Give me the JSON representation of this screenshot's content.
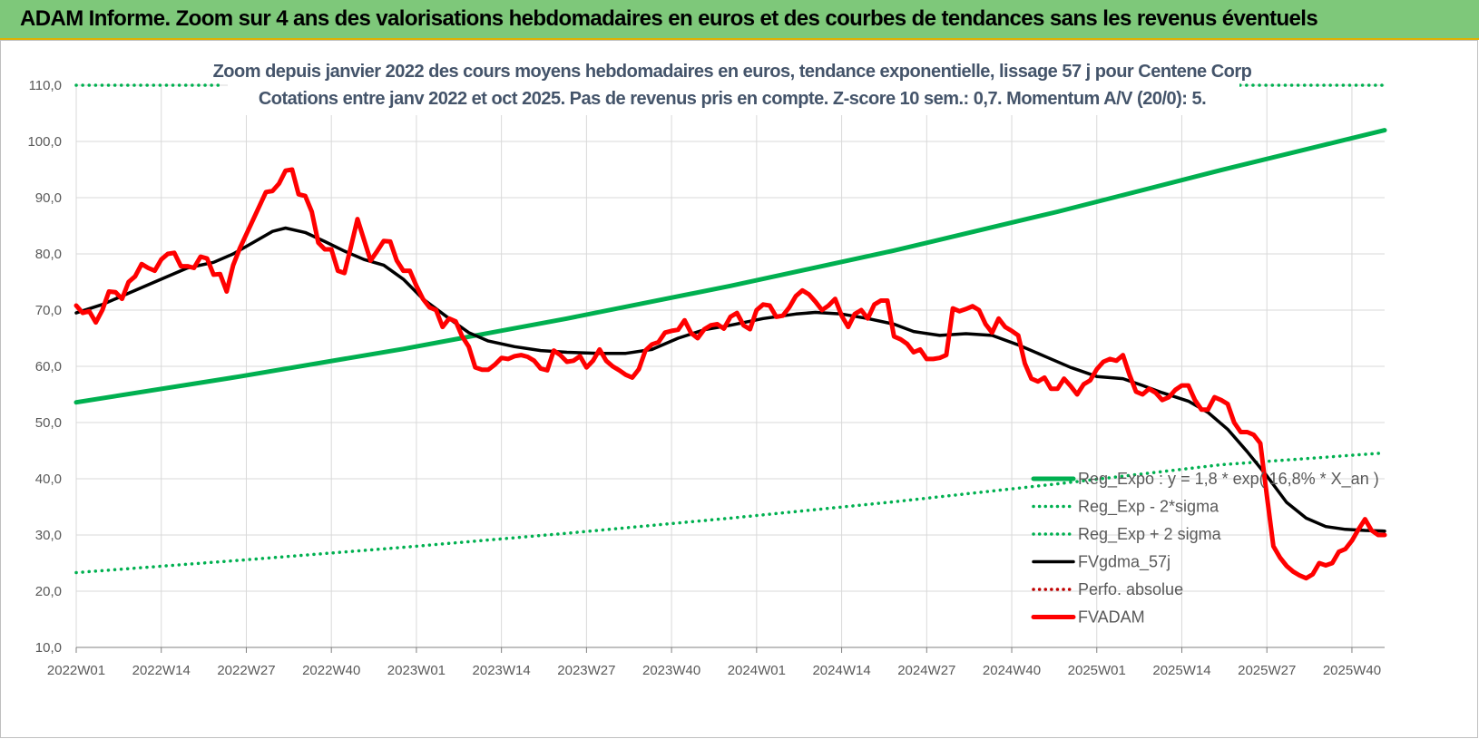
{
  "header": {
    "title": "ADAM Informe. Zoom sur 4 ans des valorisations hebdomadaires en euros et des courbes de tendances sans les revenus éventuels"
  },
  "colors": {
    "banner": "#7ec87a",
    "trend_green": "#00b050",
    "sigma_green": "#00b050",
    "mean_black": "#000000",
    "price_red": "#ff0000",
    "grid": "#d9d9d9",
    "title_text": "#44546a"
  },
  "chart_data": {
    "type": "line",
    "title": "Zoom depuis janvier 2022 des cours moyens hebdomadaires en euros, tendance exponentielle, lissage 57 j pour Centene Corp",
    "subtitle": "Cotations entre janv 2022 et oct 2025. Pas de revenus pris en compte. Z-score 10 sem.: 0,7. Momentum A/V (20/0): 5.",
    "xlabel": "",
    "ylabel": "",
    "ylim": [
      10,
      110
    ],
    "yticks": [
      "10,0",
      "20,0",
      "30,0",
      "40,0",
      "50,0",
      "60,0",
      "70,0",
      "80,0",
      "90,0",
      "100,0",
      "110,0"
    ],
    "grid": true,
    "legend_position": "bottom-right",
    "x_ticks": [
      {
        "week": 0,
        "label": "2022W01"
      },
      {
        "week": 13,
        "label": "2022W14"
      },
      {
        "week": 26,
        "label": "2022W27"
      },
      {
        "week": 39,
        "label": "2022W40"
      },
      {
        "week": 52,
        "label": "2023W01"
      },
      {
        "week": 65,
        "label": "2023W14"
      },
      {
        "week": 78,
        "label": "2023W27"
      },
      {
        "week": 91,
        "label": "2023W40"
      },
      {
        "week": 104,
        "label": "2024W01"
      },
      {
        "week": 117,
        "label": "2024W14"
      },
      {
        "week": 130,
        "label": "2024W27"
      },
      {
        "week": 143,
        "label": "2024W40"
      },
      {
        "week": 156,
        "label": "2025W01"
      },
      {
        "week": 169,
        "label": "2025W14"
      },
      {
        "week": 182,
        "label": "2025W27"
      },
      {
        "week": 195,
        "label": "2025W40"
      }
    ],
    "x_max_week": 200,
    "series": [
      {
        "name": "Reg_Expo : y = 1,8 * exp( 16,8% * X_an )",
        "style": "solid-thick",
        "color": "#00b050",
        "points": [
          [
            0,
            53.6
          ],
          [
            25,
            58.2
          ],
          [
            50,
            63.1
          ],
          [
            75,
            68.5
          ],
          [
            100,
            74.3
          ],
          [
            125,
            80.6
          ],
          [
            150,
            87.5
          ],
          [
            175,
            94.9
          ],
          [
            200,
            102.0
          ]
        ]
      },
      {
        "name": "Reg_Exp - 2*sigma",
        "style": "dotted",
        "color": "#00b050",
        "points": [
          [
            0,
            23.3
          ],
          [
            25,
            25.5
          ],
          [
            50,
            27.8
          ],
          [
            75,
            30.3
          ],
          [
            100,
            33.0
          ],
          [
            125,
            35.9
          ],
          [
            150,
            39.1
          ],
          [
            175,
            42.5
          ],
          [
            200,
            44.6
          ]
        ]
      },
      {
        "name": "Reg_Exp + 2 sigma",
        "style": "dotted",
        "color": "#00b050",
        "segments": [
          [
            [
              0,
              110
            ],
            [
              22,
              110
            ]
          ],
          [
            [
              172,
              110
            ],
            [
              200,
              110
            ]
          ]
        ]
      },
      {
        "name": "FVgdma_57j",
        "style": "solid",
        "color": "#000000",
        "points": [
          [
            0,
            69.5
          ],
          [
            4,
            71.0
          ],
          [
            8,
            73.0
          ],
          [
            13,
            75.5
          ],
          [
            17,
            77.5
          ],
          [
            21,
            78.5
          ],
          [
            24,
            80.0
          ],
          [
            27,
            82.0
          ],
          [
            30,
            84.0
          ],
          [
            32,
            84.6
          ],
          [
            35,
            83.8
          ],
          [
            38,
            82.2
          ],
          [
            41,
            80.5
          ],
          [
            44,
            79.0
          ],
          [
            47,
            78.0
          ],
          [
            50,
            75.5
          ],
          [
            53,
            72.0
          ],
          [
            57,
            68.5
          ],
          [
            60,
            66.0
          ],
          [
            63,
            64.5
          ],
          [
            67,
            63.5
          ],
          [
            71,
            62.8
          ],
          [
            75,
            62.5
          ],
          [
            80,
            62.3
          ],
          [
            84,
            62.3
          ],
          [
            88,
            63.0
          ],
          [
            92,
            65.0
          ],
          [
            96,
            66.5
          ],
          [
            100,
            67.3
          ],
          [
            105,
            68.5
          ],
          [
            110,
            69.3
          ],
          [
            113,
            69.6
          ],
          [
            117,
            69.3
          ],
          [
            121,
            68.5
          ],
          [
            125,
            67.5
          ],
          [
            128,
            66.2
          ],
          [
            132,
            65.5
          ],
          [
            136,
            65.8
          ],
          [
            140,
            65.5
          ],
          [
            144,
            63.8
          ],
          [
            148,
            61.8
          ],
          [
            152,
            59.8
          ],
          [
            156,
            58.2
          ],
          [
            160,
            57.8
          ],
          [
            163,
            56.6
          ],
          [
            166,
            55.3
          ],
          [
            170,
            53.8
          ],
          [
            173,
            51.8
          ],
          [
            176,
            48.8
          ],
          [
            179,
            44.8
          ],
          [
            182,
            40.5
          ],
          [
            185,
            35.8
          ],
          [
            188,
            33.0
          ],
          [
            191,
            31.5
          ],
          [
            194,
            31.0
          ],
          [
            197,
            30.8
          ],
          [
            200,
            30.7
          ]
        ]
      },
      {
        "name": "Perfo. absolue",
        "style": "dotted",
        "color": "#c00000",
        "points": []
      },
      {
        "name": "FVADAM",
        "style": "solid-thick",
        "color": "#ff0000",
        "points": [
          [
            0,
            70.8
          ],
          [
            1,
            69.5
          ],
          [
            2,
            69.8
          ],
          [
            3,
            67.8
          ],
          [
            4,
            70.0
          ],
          [
            5,
            73.3
          ],
          [
            6,
            73.2
          ],
          [
            7,
            72.0
          ],
          [
            8,
            75.0
          ],
          [
            9,
            76.0
          ],
          [
            10,
            78.2
          ],
          [
            11,
            77.5
          ],
          [
            12,
            77.0
          ],
          [
            13,
            79.0
          ],
          [
            14,
            80.0
          ],
          [
            15,
            80.2
          ],
          [
            16,
            77.8
          ],
          [
            17,
            77.8
          ],
          [
            18,
            77.5
          ],
          [
            19,
            79.5
          ],
          [
            20,
            79.2
          ],
          [
            21,
            76.3
          ],
          [
            22,
            76.4
          ],
          [
            23,
            73.3
          ],
          [
            24,
            78.0
          ],
          [
            25,
            81.0
          ],
          [
            26,
            83.5
          ],
          [
            27,
            86.0
          ],
          [
            28,
            88.5
          ],
          [
            29,
            91.0
          ],
          [
            30,
            91.2
          ],
          [
            31,
            92.5
          ],
          [
            32,
            94.8
          ],
          [
            33,
            95.0
          ],
          [
            34,
            90.6
          ],
          [
            35,
            90.3
          ],
          [
            36,
            87.5
          ],
          [
            37,
            82.0
          ],
          [
            38,
            80.8
          ],
          [
            39,
            80.8
          ],
          [
            40,
            77.0
          ],
          [
            41,
            76.6
          ],
          [
            42,
            81.3
          ],
          [
            43,
            86.2
          ],
          [
            44,
            82.5
          ],
          [
            45,
            78.8
          ],
          [
            46,
            80.5
          ],
          [
            47,
            82.3
          ],
          [
            48,
            82.2
          ],
          [
            49,
            78.8
          ],
          [
            50,
            77.0
          ],
          [
            51,
            77.0
          ],
          [
            52,
            74.3
          ],
          [
            53,
            72.0
          ],
          [
            54,
            70.5
          ],
          [
            55,
            70.0
          ],
          [
            56,
            67.0
          ],
          [
            57,
            68.5
          ],
          [
            58,
            68.0
          ],
          [
            59,
            65.3
          ],
          [
            60,
            63.5
          ],
          [
            61,
            59.8
          ],
          [
            62,
            59.4
          ],
          [
            63,
            59.4
          ],
          [
            64,
            60.3
          ],
          [
            65,
            61.5
          ],
          [
            66,
            61.3
          ],
          [
            67,
            61.8
          ],
          [
            68,
            62.0
          ],
          [
            69,
            61.7
          ],
          [
            70,
            61.0
          ],
          [
            71,
            59.6
          ],
          [
            72,
            59.3
          ],
          [
            73,
            62.8
          ],
          [
            74,
            62.0
          ],
          [
            75,
            60.8
          ],
          [
            76,
            61.0
          ],
          [
            77,
            61.8
          ],
          [
            78,
            59.8
          ],
          [
            79,
            61.0
          ],
          [
            80,
            63.0
          ],
          [
            81,
            61.0
          ],
          [
            82,
            60.0
          ],
          [
            83,
            59.3
          ],
          [
            84,
            58.5
          ],
          [
            85,
            58.0
          ],
          [
            86,
            59.5
          ],
          [
            87,
            62.8
          ],
          [
            88,
            63.9
          ],
          [
            89,
            64.3
          ],
          [
            90,
            66.0
          ],
          [
            91,
            66.3
          ],
          [
            92,
            66.5
          ],
          [
            93,
            68.2
          ],
          [
            94,
            65.9
          ],
          [
            95,
            65.0
          ],
          [
            96,
            66.6
          ],
          [
            97,
            67.3
          ],
          [
            98,
            67.5
          ],
          [
            99,
            66.7
          ],
          [
            100,
            68.8
          ],
          [
            101,
            69.5
          ],
          [
            102,
            67.3
          ],
          [
            103,
            66.6
          ],
          [
            104,
            70.0
          ],
          [
            105,
            71.0
          ],
          [
            106,
            70.8
          ],
          [
            107,
            68.8
          ],
          [
            108,
            69.0
          ],
          [
            109,
            70.5
          ],
          [
            110,
            72.5
          ],
          [
            111,
            73.5
          ],
          [
            112,
            72.8
          ],
          [
            113,
            71.5
          ],
          [
            114,
            70.0
          ],
          [
            115,
            70.8
          ],
          [
            116,
            72.0
          ],
          [
            117,
            69.0
          ],
          [
            118,
            67.0
          ],
          [
            119,
            69.3
          ],
          [
            120,
            70.0
          ],
          [
            121,
            68.5
          ],
          [
            122,
            71.0
          ],
          [
            123,
            71.7
          ],
          [
            124,
            71.7
          ],
          [
            125,
            65.3
          ],
          [
            126,
            64.8
          ],
          [
            127,
            64.0
          ],
          [
            128,
            62.5
          ],
          [
            129,
            63.0
          ],
          [
            130,
            61.3
          ],
          [
            131,
            61.3
          ],
          [
            132,
            61.5
          ],
          [
            133,
            62.0
          ],
          [
            134,
            70.3
          ],
          [
            135,
            69.8
          ],
          [
            136,
            70.2
          ],
          [
            137,
            70.7
          ],
          [
            138,
            70.0
          ],
          [
            139,
            67.5
          ],
          [
            140,
            66.0
          ],
          [
            141,
            68.5
          ],
          [
            142,
            67.0
          ],
          [
            143,
            66.3
          ],
          [
            144,
            65.5
          ],
          [
            145,
            60.5
          ],
          [
            146,
            57.8
          ],
          [
            147,
            57.3
          ],
          [
            148,
            58.0
          ],
          [
            149,
            56.0
          ],
          [
            150,
            56.0
          ],
          [
            151,
            57.8
          ],
          [
            152,
            56.5
          ],
          [
            153,
            55.0
          ],
          [
            154,
            56.8
          ],
          [
            155,
            57.5
          ],
          [
            156,
            59.5
          ],
          [
            157,
            60.8
          ],
          [
            158,
            61.3
          ],
          [
            159,
            61.0
          ],
          [
            160,
            62.0
          ],
          [
            161,
            58.5
          ],
          [
            162,
            55.5
          ],
          [
            163,
            55.0
          ],
          [
            164,
            56.0
          ],
          [
            165,
            55.3
          ],
          [
            166,
            54.0
          ],
          [
            167,
            54.5
          ],
          [
            168,
            55.8
          ],
          [
            169,
            56.6
          ],
          [
            170,
            56.6
          ],
          [
            171,
            54.0
          ],
          [
            172,
            52.3
          ],
          [
            173,
            52.3
          ],
          [
            174,
            54.5
          ],
          [
            175,
            54.0
          ],
          [
            176,
            53.3
          ],
          [
            177,
            50.0
          ],
          [
            178,
            48.3
          ],
          [
            179,
            48.3
          ],
          [
            180,
            47.8
          ],
          [
            181,
            46.3
          ],
          [
            182,
            37.0
          ],
          [
            183,
            28.0
          ],
          [
            184,
            26.0
          ],
          [
            185,
            24.5
          ],
          [
            186,
            23.5
          ],
          [
            187,
            22.8
          ],
          [
            188,
            22.3
          ],
          [
            189,
            23.0
          ],
          [
            190,
            25.0
          ],
          [
            191,
            24.6
          ],
          [
            192,
            25.0
          ],
          [
            193,
            27.0
          ],
          [
            194,
            27.5
          ],
          [
            195,
            29.0
          ],
          [
            196,
            31.0
          ],
          [
            197,
            32.8
          ],
          [
            198,
            30.8
          ],
          [
            199,
            30.0
          ],
          [
            200,
            30.0
          ]
        ]
      }
    ]
  }
}
